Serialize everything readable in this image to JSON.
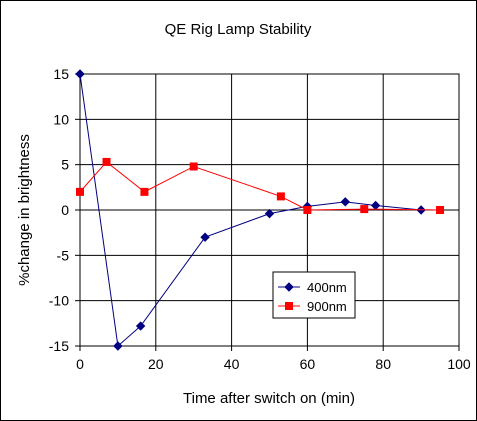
{
  "chart_data": {
    "type": "line",
    "title": "QE Rig Lamp Stability",
    "xlabel": "Time after switch on (min)",
    "ylabel": "%change in brightness",
    "xlim": [
      0,
      100
    ],
    "ylim": [
      -15,
      15
    ],
    "x_ticks": [
      0,
      20,
      40,
      60,
      80,
      100
    ],
    "y_ticks": [
      15,
      10,
      5,
      0,
      -5,
      -10,
      -15
    ],
    "grid": true,
    "legend_position": "bottom-right",
    "series": [
      {
        "name": "400nm",
        "color": "#000080",
        "marker": "diamond",
        "x": [
          0,
          10,
          16,
          33,
          50,
          60,
          70,
          78,
          90
        ],
        "y": [
          15,
          -15,
          -12.8,
          -3,
          -0.4,
          0.4,
          0.9,
          0.5,
          0
        ]
      },
      {
        "name": "900nm",
        "color": "#ff0000",
        "marker": "square",
        "x": [
          0,
          7,
          17,
          30,
          53,
          60,
          75,
          95
        ],
        "y": [
          2,
          5.3,
          2,
          4.8,
          1.5,
          0,
          0.1,
          0
        ]
      }
    ]
  }
}
